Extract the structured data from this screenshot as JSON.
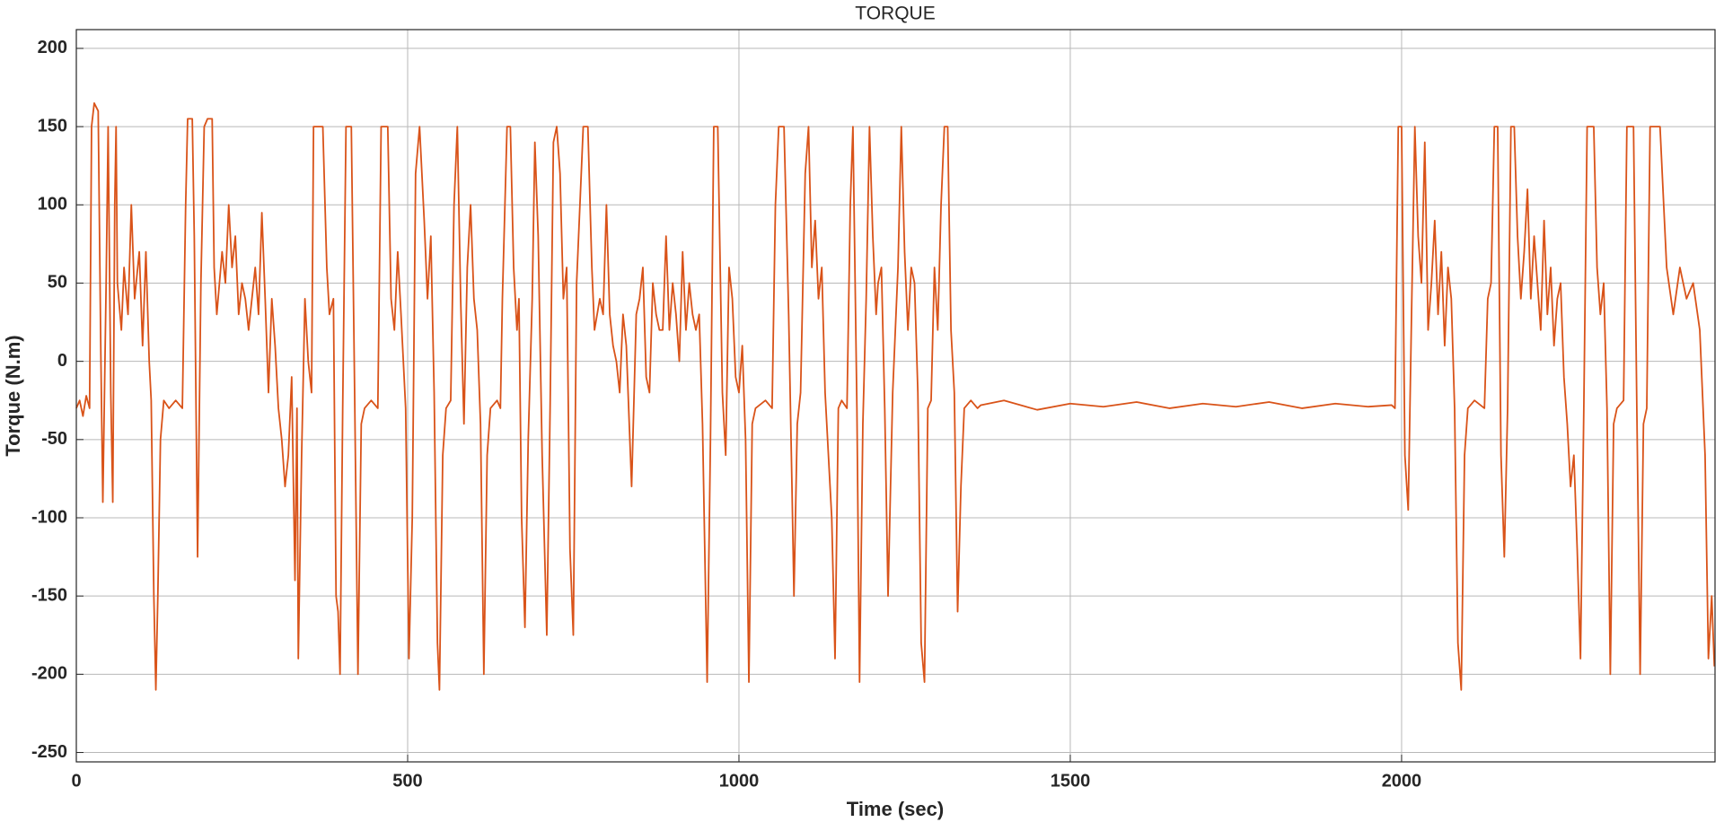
{
  "chart_data": {
    "type": "line",
    "title": "TORQUE",
    "x_label": "Time (sec)",
    "y_label": "Torque (N.m)",
    "xlim": [
      0,
      2473
    ],
    "ylim": [
      -256,
      212
    ],
    "xticks": [
      0,
      500,
      1000,
      1500,
      2000
    ],
    "yticks": [
      -250,
      -200,
      -150,
      -100,
      -50,
      0,
      50,
      100,
      150,
      200
    ],
    "grid": true,
    "color": "#d95319",
    "x": [
      0,
      5,
      10,
      15,
      20,
      23,
      27,
      33,
      37,
      40,
      45,
      48,
      52,
      55,
      58,
      60,
      62,
      68,
      72,
      78,
      83,
      88,
      95,
      100,
      105,
      110,
      113,
      117,
      120,
      123,
      127,
      132,
      140,
      150,
      160,
      165,
      168,
      175,
      178,
      183,
      188,
      193,
      198,
      205,
      208,
      212,
      220,
      225,
      230,
      235,
      240,
      245,
      250,
      255,
      260,
      265,
      270,
      275,
      280,
      285,
      290,
      295,
      300,
      305,
      310,
      315,
      320,
      325,
      330,
      333,
      335,
      340,
      345,
      350,
      355,
      358,
      365,
      372,
      378,
      382,
      388,
      392,
      395,
      398,
      402,
      407,
      415,
      420,
      425,
      430,
      435,
      445,
      455,
      460,
      470,
      475,
      480,
      485,
      490,
      497,
      502,
      507,
      512,
      518,
      525,
      530,
      535,
      540,
      545,
      548,
      553,
      558,
      565,
      570,
      575,
      580,
      585,
      590,
      595,
      600,
      605,
      610,
      615,
      620,
      625,
      635,
      640,
      643,
      650,
      655,
      660,
      665,
      668,
      672,
      677,
      682,
      688,
      692,
      697,
      703,
      710,
      715,
      720,
      725,
      730,
      735,
      740,
      745,
      750,
      755,
      765,
      772,
      778,
      782,
      790,
      795,
      800,
      805,
      810,
      815,
      820,
      825,
      830,
      838,
      845,
      850,
      855,
      860,
      865,
      870,
      875,
      880,
      885,
      890,
      895,
      900,
      905,
      910,
      915,
      920,
      925,
      930,
      935,
      940,
      945,
      952,
      957,
      962,
      968,
      975,
      980,
      985,
      990,
      995,
      1000,
      1005,
      1010,
      1015,
      1020,
      1025,
      1040,
      1050,
      1055,
      1060,
      1068,
      1075,
      1080,
      1083,
      1088,
      1093,
      1100,
      1105,
      1110,
      1115,
      1120,
      1125,
      1130,
      1135,
      1140,
      1145,
      1150,
      1155,
      1163,
      1168,
      1172,
      1178,
      1182,
      1187,
      1192,
      1197,
      1202,
      1207,
      1210,
      1215,
      1220,
      1225,
      1232,
      1240,
      1245,
      1250,
      1255,
      1260,
      1265,
      1270,
      1275,
      1280,
      1285,
      1290,
      1295,
      1300,
      1305,
      1310,
      1315,
      1320,
      1325,
      1330,
      1335,
      1340,
      1350,
      1360,
      1365,
      1400,
      1450,
      1500,
      1550,
      1600,
      1650,
      1700,
      1750,
      1800,
      1850,
      1900,
      1950,
      1985,
      1990,
      1995,
      2000,
      2005,
      2010,
      2015,
      2020,
      2025,
      2030,
      2035,
      2040,
      2045,
      2050,
      2055,
      2060,
      2065,
      2070,
      2075,
      2080,
      2085,
      2090,
      2095,
      2100,
      2110,
      2125,
      2130,
      2135,
      2140,
      2145,
      2150,
      2155,
      2160,
      2165,
      2170,
      2175,
      2180,
      2185,
      2190,
      2195,
      2200,
      2205,
      2210,
      2215,
      2220,
      2225,
      2230,
      2235,
      2240,
      2245,
      2250,
      2255,
      2260,
      2265,
      2270,
      2275,
      2280,
      2285,
      2290,
      2295,
      2300,
      2305,
      2310,
      2315,
      2320,
      2325,
      2335,
      2340,
      2350,
      2355,
      2360,
      2365,
      2370,
      2375,
      2385,
      2390,
      2400,
      2410,
      2420,
      2430,
      2440,
      2450,
      2458,
      2463,
      2468,
      2472
    ],
    "values": [
      -30,
      -25,
      -35,
      -22,
      -30,
      150,
      165,
      160,
      5,
      -90,
      50,
      150,
      -20,
      -90,
      100,
      150,
      50,
      20,
      60,
      30,
      100,
      40,
      70,
      10,
      70,
      0,
      -25,
      -150,
      -210,
      -150,
      -50,
      -25,
      -30,
      -25,
      -30,
      100,
      155,
      155,
      80,
      -125,
      50,
      150,
      155,
      155,
      60,
      30,
      70,
      50,
      100,
      60,
      80,
      30,
      50,
      40,
      20,
      40,
      60,
      30,
      95,
      40,
      -20,
      40,
      10,
      -30,
      -50,
      -80,
      -60,
      -10,
      -140,
      -30,
      -190,
      -60,
      40,
      0,
      -20,
      150,
      150,
      150,
      60,
      30,
      40,
      -150,
      -160,
      -200,
      -30,
      150,
      150,
      -20,
      -200,
      -40,
      -30,
      -25,
      -30,
      150,
      150,
      40,
      20,
      70,
      30,
      -30,
      -190,
      -100,
      120,
      150,
      90,
      40,
      80,
      -20,
      -180,
      -210,
      -60,
      -30,
      -25,
      100,
      150,
      40,
      -40,
      60,
      100,
      40,
      20,
      -40,
      -200,
      -60,
      -30,
      -25,
      -30,
      40,
      150,
      150,
      60,
      20,
      40,
      -100,
      -170,
      -50,
      40,
      140,
      80,
      -60,
      -175,
      -30,
      140,
      150,
      120,
      40,
      60,
      -120,
      -175,
      50,
      150,
      150,
      60,
      20,
      40,
      30,
      100,
      30,
      10,
      0,
      -20,
      30,
      10,
      -80,
      30,
      40,
      60,
      -10,
      -20,
      50,
      30,
      20,
      20,
      80,
      20,
      50,
      30,
      0,
      70,
      20,
      50,
      30,
      20,
      30,
      -40,
      -205,
      -50,
      150,
      150,
      -20,
      -60,
      60,
      40,
      -10,
      -20,
      10,
      -50,
      -205,
      -40,
      -30,
      -25,
      -30,
      100,
      150,
      150,
      30,
      -80,
      -150,
      -40,
      -20,
      120,
      150,
      60,
      90,
      40,
      60,
      -20,
      -60,
      -100,
      -190,
      -30,
      -25,
      -30,
      100,
      150,
      -30,
      -205,
      -40,
      40,
      150,
      80,
      30,
      50,
      60,
      -30,
      -150,
      -20,
      60,
      150,
      70,
      20,
      60,
      50,
      -20,
      -180,
      -205,
      -30,
      -25,
      60,
      20,
      100,
      150,
      150,
      20,
      -20,
      -160,
      -80,
      -30,
      -25,
      -30,
      -28,
      -25,
      -31,
      -27,
      -29,
      -26,
      -30,
      -27,
      -29,
      -26,
      -30,
      -27,
      -29,
      -28,
      -30,
      150,
      150,
      -60,
      -95,
      30,
      150,
      80,
      50,
      140,
      20,
      50,
      90,
      30,
      70,
      10,
      60,
      40,
      -30,
      -180,
      -210,
      -60,
      -30,
      -25,
      -30,
      40,
      50,
      150,
      150,
      -60,
      -125,
      -30,
      150,
      150,
      80,
      40,
      70,
      110,
      40,
      80,
      50,
      20,
      90,
      30,
      60,
      10,
      40,
      50,
      -10,
      -40,
      -80,
      -60,
      -120,
      -190,
      -30,
      150,
      150,
      150,
      60,
      30,
      50,
      -30,
      -200,
      -40,
      -30,
      -25,
      150,
      150,
      -30,
      -200,
      -40,
      -30,
      150,
      150,
      150,
      60,
      30,
      60,
      40,
      50,
      20,
      -60,
      -190,
      -150,
      -195
    ]
  }
}
